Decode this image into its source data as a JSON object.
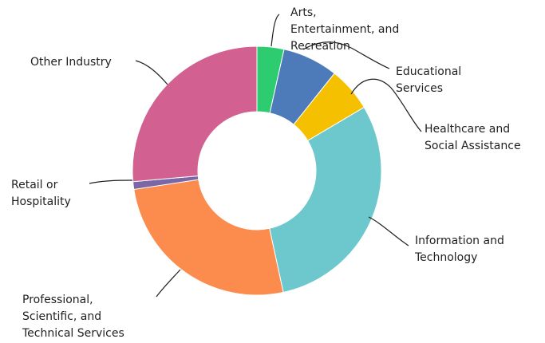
{
  "chart_data": {
    "type": "pie",
    "donut": true,
    "legend": "none",
    "slices": [
      {
        "label": "Arts, Entertainment, and Recreation",
        "value": 3.5,
        "color": "#2ecc71"
      },
      {
        "label": "Educational Services",
        "value": 7.2,
        "color": "#4d7ab8"
      },
      {
        "label": "Healthcare and Social Assistance",
        "value": 5.8,
        "color": "#f5c000"
      },
      {
        "label": "Information and Technology",
        "value": 30.1,
        "color": "#6cc8cc"
      },
      {
        "label": "Professional, Scientific, and Technical Services",
        "value": 26.0,
        "color": "#fb8c4e"
      },
      {
        "label": "Retail or Hospitality",
        "value": 1.0,
        "color": "#7b66a6"
      },
      {
        "label": "Other Industry",
        "value": 26.4,
        "color": "#d26090"
      }
    ],
    "label_lines": [
      [
        "Arts,",
        "Entertainment, and",
        "Recreation"
      ],
      [
        "Educational",
        "Services"
      ],
      [
        "Healthcare and",
        "Social Assistance"
      ],
      [
        "Information and",
        "Technology"
      ],
      [
        "Professional,",
        "Scientific, and",
        "Technical Services"
      ],
      [
        "Retail or",
        "Hospitality"
      ],
      [
        "Other Industry"
      ]
    ]
  }
}
